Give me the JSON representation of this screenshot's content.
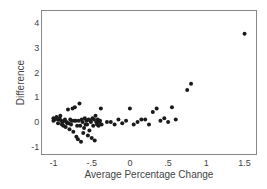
{
  "chart_data": {
    "type": "scatter",
    "xlabel": "Average Percentage Change",
    "ylabel": "Difference",
    "xlim": [
      -1.15,
      1.65
    ],
    "ylim": [
      -1.3,
      4.5
    ],
    "xticks": [
      -1,
      {
        "value": -0.5,
        "label": "-.5"
      },
      0,
      {
        "value": 0.5,
        "label": ".5"
      },
      1,
      1.5
    ],
    "yticks": [
      -1,
      0,
      1,
      2,
      3,
      4
    ],
    "color": "#1a1a1a",
    "marker": "circle",
    "grid": false,
    "x": [
      -1.0,
      -1.0,
      -0.98,
      -0.96,
      -0.94,
      -0.94,
      -0.92,
      -0.91,
      -0.9,
      -0.89,
      -0.88,
      -0.87,
      -0.86,
      -0.85,
      -0.84,
      -0.83,
      -0.82,
      -0.81,
      -0.8,
      -0.79,
      -0.78,
      -0.77,
      -0.76,
      -0.75,
      -0.74,
      -0.73,
      -0.72,
      -0.71,
      -0.7,
      -0.69,
      -0.68,
      -0.67,
      -0.66,
      -0.65,
      -0.64,
      -0.63,
      -0.62,
      -0.61,
      -0.6,
      -0.59,
      -0.58,
      -0.57,
      -0.56,
      -0.55,
      -0.54,
      -0.53,
      -0.52,
      -0.51,
      -0.5,
      -0.49,
      -0.48,
      -0.47,
      -0.46,
      -0.45,
      -0.44,
      -0.43,
      -0.42,
      -0.41,
      -0.4,
      -0.39,
      -0.38,
      -0.37,
      -0.3,
      -0.25,
      -0.2,
      -0.15,
      -0.1,
      -0.05,
      0.0,
      0.05,
      0.1,
      0.15,
      0.2,
      0.25,
      0.3,
      0.35,
      0.4,
      0.45,
      0.5,
      0.55,
      0.6,
      0.75,
      0.8,
      1.5
    ],
    "values": [
      0.05,
      0.15,
      0.1,
      0.2,
      0.1,
      -0.05,
      0.15,
      0.25,
      0.05,
      -0.1,
      0.0,
      -0.15,
      0.05,
      0.1,
      -0.2,
      0.0,
      -0.05,
      0.5,
      -0.05,
      -0.3,
      0.1,
      -0.1,
      0.05,
      0.55,
      -0.4,
      0.05,
      0.6,
      0.05,
      -0.6,
      -0.15,
      -0.7,
      0.05,
      0.75,
      -0.15,
      -0.8,
      0.1,
      0.0,
      -0.45,
      -0.25,
      0.15,
      -0.1,
      0.05,
      -0.1,
      -0.55,
      0.1,
      -0.35,
      0.05,
      0.0,
      -0.65,
      0.15,
      -0.15,
      0.1,
      -0.75,
      0.25,
      0.0,
      -0.1,
      0.1,
      -0.15,
      0.0,
      0.05,
      0.55,
      -0.1,
      0.0,
      0.0,
      -0.1,
      0.1,
      -0.05,
      0.05,
      0.55,
      -0.1,
      0.0,
      0.1,
      0.1,
      -0.1,
      0.4,
      0.55,
      0.05,
      0.15,
      0.0,
      0.6,
      0.1,
      1.3,
      1.55,
      3.58
    ]
  }
}
